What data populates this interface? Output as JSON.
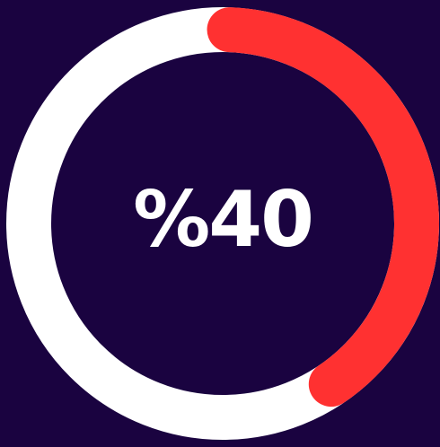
{
  "progress": {
    "percent": 40,
    "label": "%40",
    "track_color": "#ffffff",
    "fill_color": "#ff3131",
    "background_color": "#1a0340"
  }
}
